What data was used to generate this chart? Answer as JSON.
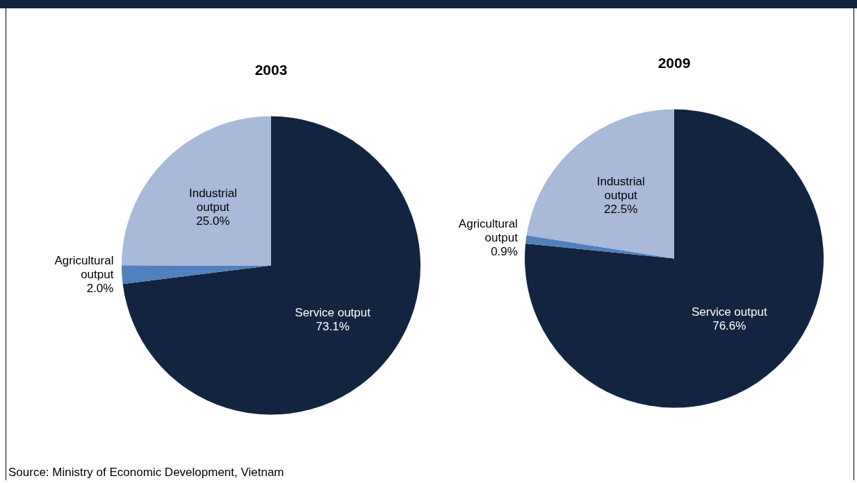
{
  "chart_data": [
    {
      "type": "pie",
      "title": "2003",
      "categories": [
        "Service output",
        "Agricultural output",
        "Industrial output"
      ],
      "values": [
        73.1,
        2.0,
        25.0
      ],
      "value_labels": [
        "73.1%",
        "2.0%",
        "25.0%"
      ],
      "colors": [
        "#12243f",
        "#4f81bd",
        "#a9b9d8"
      ],
      "legend": false,
      "annotations": [
        "Source: Ministry of Economic Development, Vietnam"
      ]
    },
    {
      "type": "pie",
      "title": "2009",
      "categories": [
        "Service output",
        "Agricultural output",
        "Industrial output"
      ],
      "values": [
        76.6,
        0.9,
        22.5
      ],
      "value_labels": [
        "76.6%",
        "0.9%",
        "22.5%"
      ],
      "colors": [
        "#12243f",
        "#4f81bd",
        "#a9b9d8"
      ],
      "legend": false
    }
  ]
}
